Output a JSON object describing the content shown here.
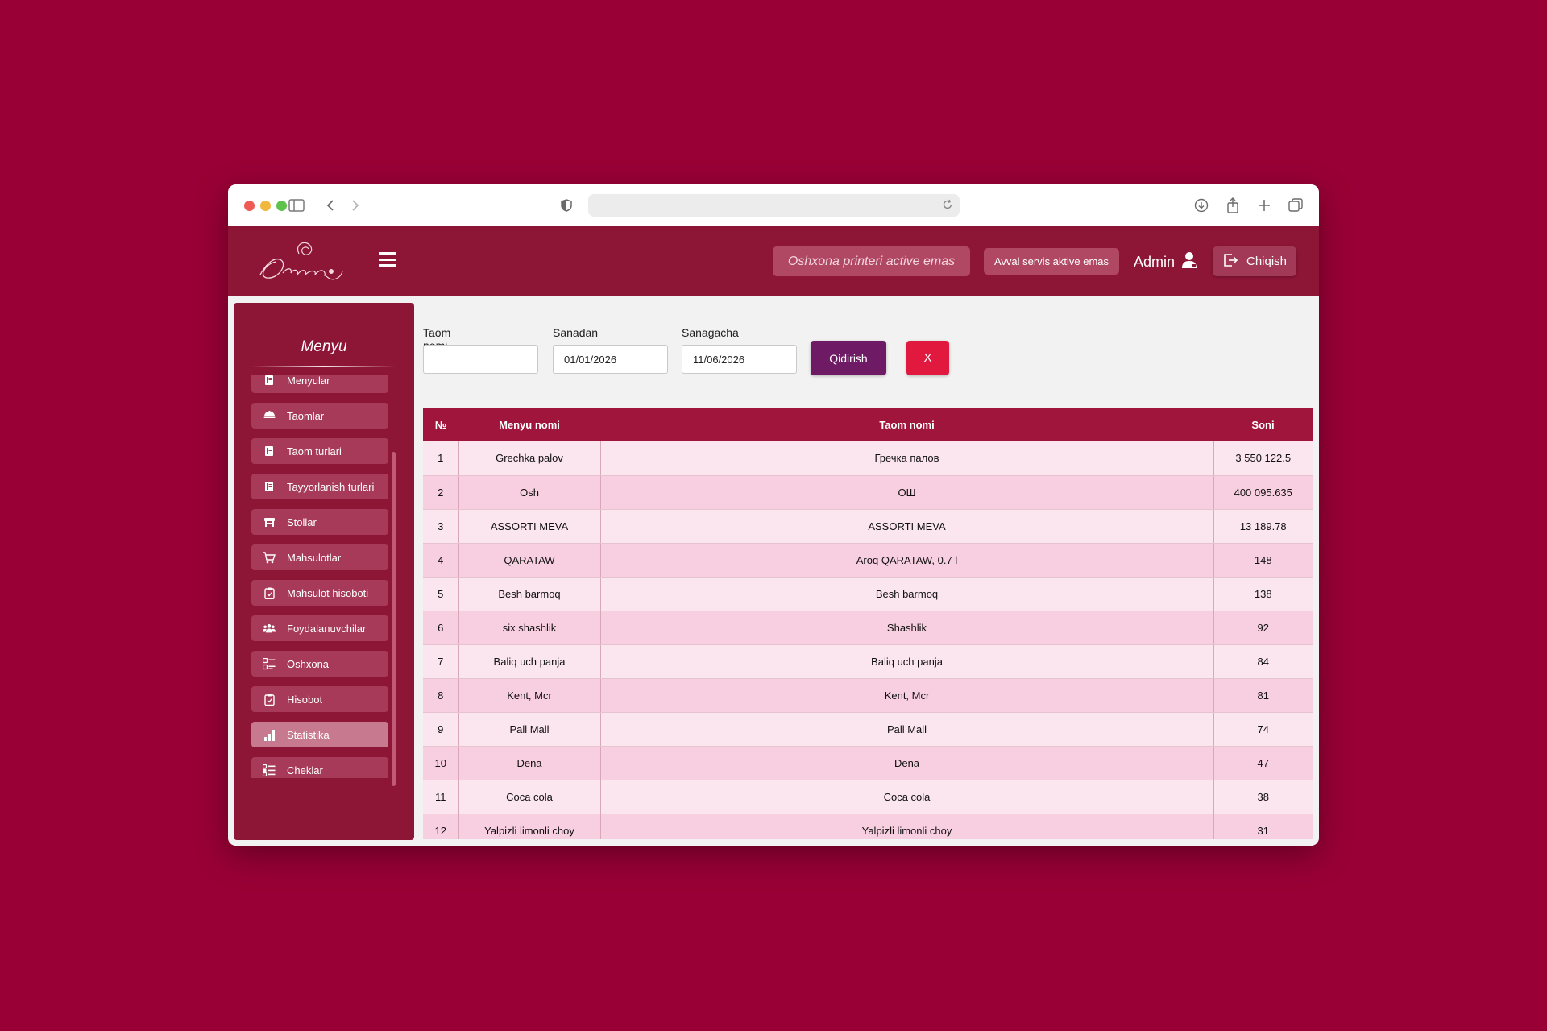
{
  "app": {
    "printer_status": "Oshxona printeri active emas",
    "service_status": "Avval servis aktive emas",
    "user_name": "Admin",
    "logout_label": "Chiqish"
  },
  "sidebar": {
    "title": "Menyu",
    "items": [
      {
        "label": "Menyular",
        "icon": "book-icon",
        "active": false
      },
      {
        "label": "Taomlar",
        "icon": "dish-icon",
        "active": false
      },
      {
        "label": "Taom turlari",
        "icon": "book-icon",
        "active": false
      },
      {
        "label": "Tayyorlanish turlari",
        "icon": "book-icon",
        "active": false
      },
      {
        "label": "Stollar",
        "icon": "table-icon",
        "active": false
      },
      {
        "label": "Mahsulotlar",
        "icon": "cart-icon",
        "active": false
      },
      {
        "label": "Mahsulot hisoboti",
        "icon": "clipboard-icon",
        "active": false
      },
      {
        "label": "Foydalanuvchilar",
        "icon": "users-icon",
        "active": false
      },
      {
        "label": "Oshxona",
        "icon": "kitchen-icon",
        "active": false
      },
      {
        "label": "Hisobot",
        "icon": "clipboard-icon",
        "active": false
      },
      {
        "label": "Statistika",
        "icon": "bar-chart-icon",
        "active": true
      },
      {
        "label": "Cheklar",
        "icon": "checklist-icon",
        "active": false
      }
    ]
  },
  "filters": {
    "name_label": "Taom nomi",
    "name_value": "",
    "from_label": "Sanadan",
    "from_value": "01/01/2026",
    "to_label": "Sanagacha",
    "to_value": "11/06/2026",
    "search_label": "Qidirish",
    "clear_label": "X"
  },
  "table": {
    "headers": [
      "№",
      "Menyu nomi",
      "Taom nomi",
      "Soni"
    ],
    "rows": [
      [
        "1",
        "Grechka palov",
        "Гречка палов",
        "3 550 122.5"
      ],
      [
        "2",
        "Osh",
        "ОШ",
        "400 095.635"
      ],
      [
        "3",
        "ASSORTI MEVA",
        "ASSORTI MEVA",
        "13 189.78"
      ],
      [
        "4",
        "QARATAW",
        "Aroq QARATAW, 0.7 l",
        "148"
      ],
      [
        "5",
        "Besh barmoq",
        "Besh barmoq",
        "138"
      ],
      [
        "6",
        "six shashlik",
        "Shashlik",
        "92"
      ],
      [
        "7",
        "Baliq uch panja",
        "Baliq uch panja",
        "84"
      ],
      [
        "8",
        "Kent, Mcr",
        "Kent, Mcr",
        "81"
      ],
      [
        "9",
        "Pall Mall",
        "Pall Mall",
        "74"
      ],
      [
        "10",
        "Dena",
        "Dena",
        "47"
      ],
      [
        "11",
        "Coca cola",
        "Coca cola",
        "38"
      ],
      [
        "12",
        "Yalpizli limonli choy",
        "Yalpizli limonli choy",
        "31"
      ]
    ]
  },
  "colors": {
    "background": "#990035",
    "header": "#8d1536",
    "table_header": "#a0153c",
    "search_button": "#6e1a64",
    "clear_button": "#e1193f"
  }
}
